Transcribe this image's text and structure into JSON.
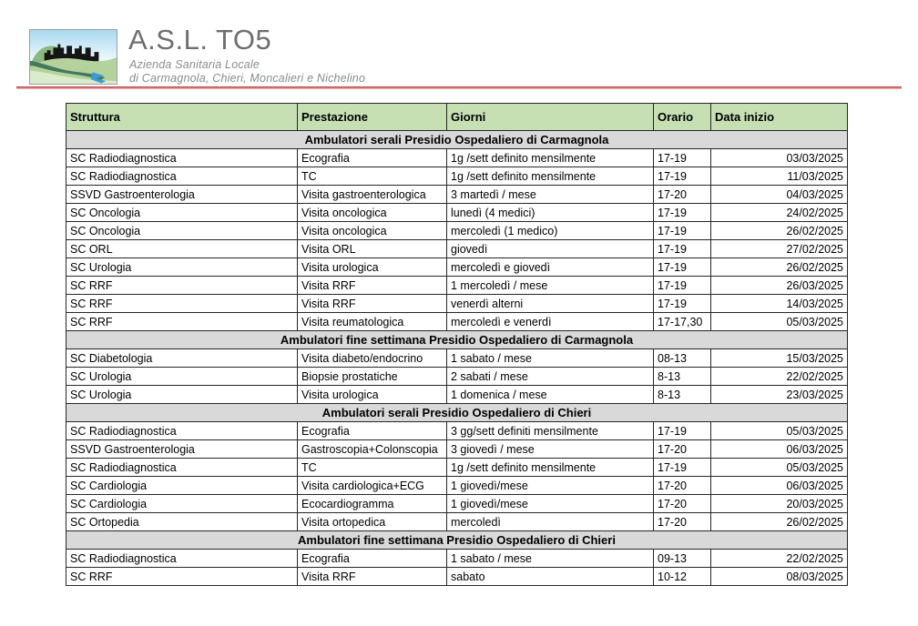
{
  "branding": {
    "title": "A.S.L. TO5",
    "subtitle_line1": "Azienda Sanitaria Locale",
    "subtitle_line2": "di Carmagnola, Chieri, Moncalieri e Nichelino",
    "title_color": "#6d6e70",
    "accent_line_color": "#c04c4c"
  },
  "table": {
    "header_bg": "#c6e0b4",
    "section_bg": "#d9d9d9",
    "columns": [
      "Struttura",
      "Prestazione",
      "Giorni",
      "Orario",
      "Data inizio"
    ],
    "sections": [
      {
        "title": "Ambulatori serali Presidio Ospedaliero di Carmagnola",
        "rows": [
          [
            "SC Radiodiagnostica",
            "Ecografia",
            "1g /sett definito mensilmente",
            "17-19",
            "03/03/2025"
          ],
          [
            "SC Radiodiagnostica",
            "TC",
            "1g /sett definito mensilmente",
            "17-19",
            "11/03/2025"
          ],
          [
            "SSVD Gastroenterologia",
            "Visita gastroenterologica",
            "3 martedì / mese",
            "17-20",
            "04/03/2025"
          ],
          [
            "SC Oncologia",
            "Visita oncologica",
            "lunedì (4 medici)",
            "17-19",
            "24/02/2025"
          ],
          [
            "SC Oncologia",
            "Visita oncologica",
            "mercoledì (1 medico)",
            "17-19",
            "26/02/2025"
          ],
          [
            "SC ORL",
            "Visita ORL",
            "giovedì",
            "17-19",
            "27/02/2025"
          ],
          [
            "SC Urologia",
            "Visita urologica",
            "mercoledì e giovedì",
            "17-19",
            "26/02/2025"
          ],
          [
            "SC RRF",
            "Visita RRF",
            "1 mercoledì / mese",
            "17-19",
            "26/03/2025"
          ],
          [
            "SC RRF",
            "Visita RRF",
            "venerdì alterni",
            "17-19",
            "14/03/2025"
          ],
          [
            "SC RRF",
            "Visita reumatologica",
            "mercoledì e venerdì",
            "17-17,30",
            "05/03/2025"
          ]
        ]
      },
      {
        "title": "Ambulatori fine settimana Presidio Ospedaliero di Carmagnola",
        "rows": [
          [
            "SC Diabetologia",
            "Visita diabeto/endocrino",
            "1 sabato / mese",
            "08-13",
            "15/03/2025"
          ],
          [
            "SC Urologia",
            "Biopsie prostatiche",
            "2 sabati / mese",
            "8-13",
            "22/02/2025"
          ],
          [
            "SC Urologia",
            "Visita urologica",
            "1 domenica / mese",
            "8-13",
            "23/03/2025"
          ]
        ]
      },
      {
        "title": "Ambulatori serali Presidio Ospedaliero di Chieri",
        "rows": [
          [
            "SC Radiodiagnostica",
            "Ecografia",
            "3 gg/sett definiti mensilmente",
            "17-19",
            "05/03/2025"
          ],
          [
            "SSVD Gastroenterologia",
            "Gastroscopia+Colonscopia",
            "3 giovedì / mese",
            "17-20",
            "06/03/2025"
          ],
          [
            "SC Radiodiagnostica",
            "TC",
            "1g /sett definito mensilmente",
            "17-19",
            "05/03/2025"
          ],
          [
            "SC Cardiologia",
            "Visita cardiologica+ECG",
            "1 giovedì/mese",
            "17-20",
            "06/03/2025"
          ],
          [
            "SC Cardiologia",
            "Ecocardiogramma",
            "1 giovedì/mese",
            "17-20",
            "20/03/2025"
          ],
          [
            "SC Ortopedia",
            "Visita ortopedica",
            "mercoledì",
            "17-20",
            "26/02/2025"
          ]
        ]
      },
      {
        "title": "Ambulatori fine settimana Presidio Ospedaliero di Chieri",
        "rows": [
          [
            "SC Radiodiagnostica",
            "Ecografia",
            "1 sabato / mese",
            "09-13",
            "22/02/2025"
          ],
          [
            "SC RRF",
            "Visita RRF",
            "sabato",
            "10-12",
            "08/03/2025"
          ]
        ]
      }
    ]
  }
}
